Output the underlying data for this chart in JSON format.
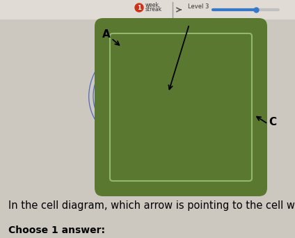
{
  "bg_color": "#ccc8c0",
  "top_bar_color": "#e0dbd4",
  "streak_dot_color": "#cc3318",
  "progress_bar_color": "#3878c8",
  "cell_wall_outer_color": "#5a7830",
  "cell_wall_inner_color": "#7a9848",
  "cell_interior_color": "#d8ede4",
  "cell_border_color": "#90b870",
  "nucleus_outer_color": "#6888c0",
  "nucleus_mid_color": "#8098d0",
  "nucleolus_color": "#2840a0",
  "er_color": "#3858b8",
  "vacuole_color": "#dceef4",
  "vacuole_border_color": "#88b8c8",
  "chloroplast_dark": "#2a5820",
  "chloroplast_mid": "#4a8830",
  "chloroplast_light": "#70b050",
  "mitochondria_outer": "#906888",
  "mitochondria_inner": "#c8a0d0",
  "brown_organelle": "#907858",
  "purple_small": "#9060a0",
  "blue_dot": "#3858a8",
  "question_text": "In the cell diagram, which arrow is pointing to the cell wall?",
  "answer_text": "Choose 1 answer:",
  "label_A": "A",
  "label_C": "C"
}
